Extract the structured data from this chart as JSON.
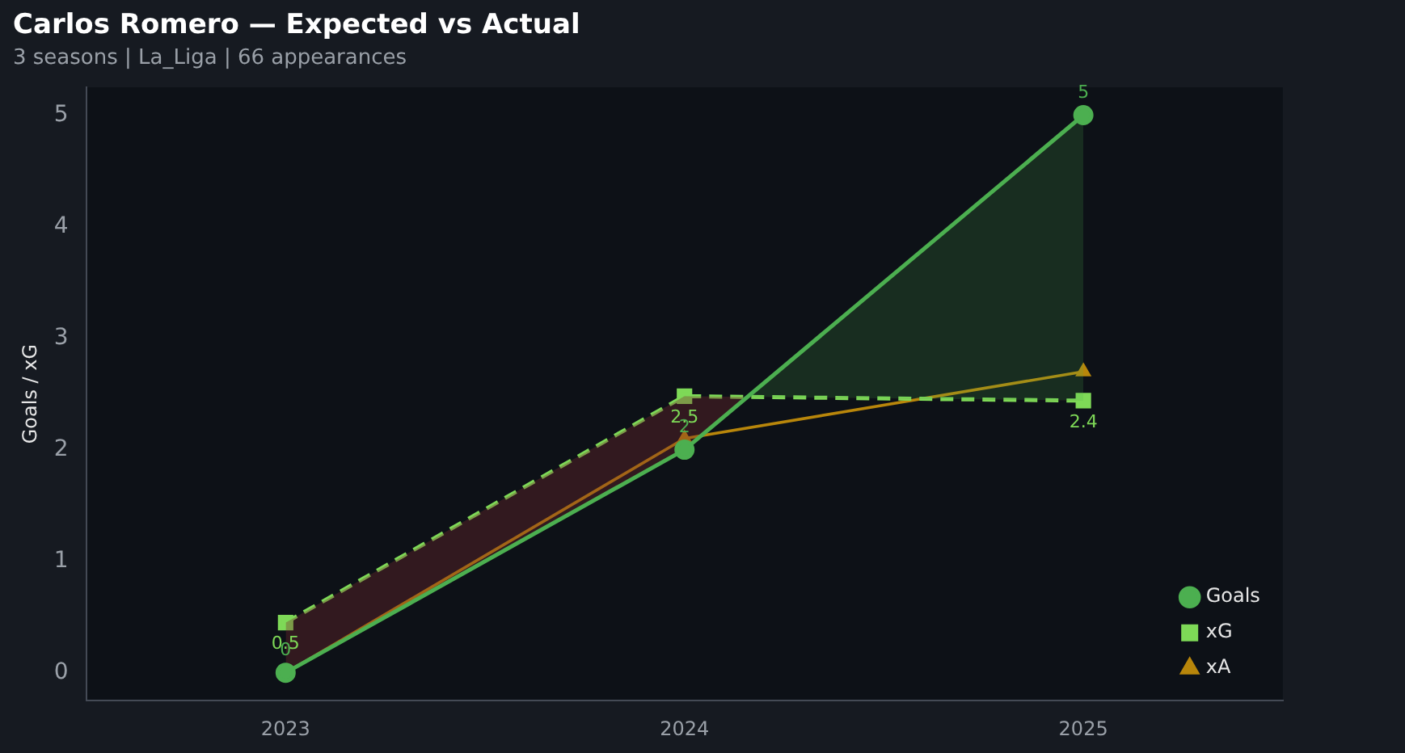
{
  "chart_data": {
    "type": "line",
    "title": "Carlos Romero — Expected vs Actual",
    "subtitle": "3 seasons | La_Liga | 66 appearances",
    "ylabel": "Goals / xG",
    "categories": [
      "2023",
      "2024",
      "2025"
    ],
    "series": [
      {
        "name": "Goals",
        "color": "#4caf50",
        "values": [
          0,
          2,
          5
        ],
        "marker": "circle",
        "line_style": "solid",
        "value_labels": [
          "0",
          "2",
          "5"
        ]
      },
      {
        "name": "xG",
        "color": "#7ed957",
        "values": [
          0.45,
          2.48,
          2.44
        ],
        "marker": "square",
        "line_style": "dashed",
        "value_labels": [
          "0.5",
          "2.5",
          "2.4"
        ]
      },
      {
        "name": "xA",
        "color": "#b8860b",
        "values": [
          0,
          2.1,
          2.7
        ],
        "marker": "triangle",
        "line_style": "solid"
      }
    ],
    "ylim": [
      -0.25,
      5.25
    ],
    "yticks": [
      0,
      1,
      2,
      3,
      4,
      5
    ],
    "grid": false,
    "legend": "bottom right"
  }
}
